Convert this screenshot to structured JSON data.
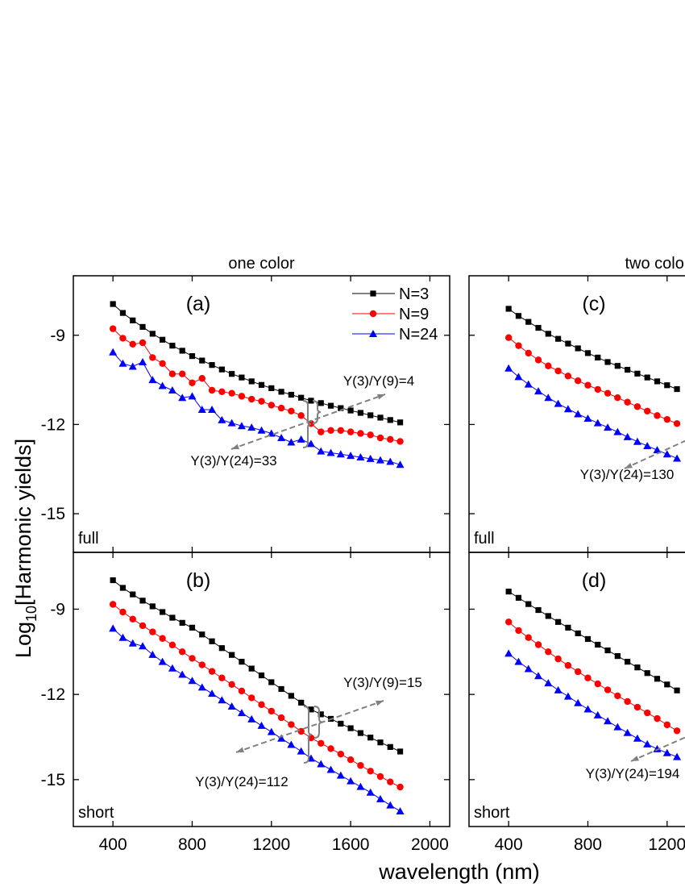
{
  "figure": {
    "ylabel": [
      "Log",
      "10",
      "[Harmonic yields]"
    ],
    "xlabel": "wavelength (nm)"
  },
  "chart_data": [
    {
      "type": "line",
      "title": "one color",
      "panel": "(a)",
      "condition": "full",
      "legend": "upper right",
      "xtick_labels": false,
      "ytick_labels": true,
      "x": [
        400,
        450,
        500,
        550,
        600,
        650,
        700,
        750,
        800,
        850,
        900,
        950,
        1000,
        1050,
        1100,
        1150,
        1200,
        1250,
        1300,
        1350,
        1400,
        1450,
        1500,
        1550,
        1600,
        1650,
        1700,
        1750,
        1800,
        1850
      ],
      "series": [
        {
          "name": "N=3",
          "color": "#000000",
          "marker": "square",
          "values": [
            -7.95,
            -8.25,
            -8.5,
            -8.72,
            -8.95,
            -9.15,
            -9.35,
            -9.52,
            -9.7,
            -9.85,
            -10.0,
            -10.15,
            -10.3,
            -10.42,
            -10.55,
            -10.67,
            -10.78,
            -10.9,
            -11.0,
            -11.1,
            -11.2,
            -11.28,
            -11.37,
            -11.45,
            -11.53,
            -11.61,
            -11.69,
            -11.77,
            -11.85,
            -11.93
          ]
        },
        {
          "name": "N=9",
          "color": "#ff0000",
          "marker": "circle",
          "values": [
            -8.78,
            -9.1,
            -9.3,
            -9.25,
            -9.75,
            -9.95,
            -10.3,
            -10.3,
            -10.6,
            -10.45,
            -10.85,
            -10.9,
            -10.95,
            -11.05,
            -11.15,
            -11.22,
            -11.35,
            -11.45,
            -11.55,
            -11.7,
            -11.97,
            -12.25,
            -12.2,
            -12.2,
            -12.25,
            -12.3,
            -12.35,
            -12.45,
            -12.5,
            -12.57
          ]
        },
        {
          "name": "N=24",
          "color": "#0000ff",
          "marker": "triangle",
          "values": [
            -9.57,
            -9.95,
            -10.05,
            -9.9,
            -10.5,
            -10.7,
            -10.85,
            -11.1,
            -11.05,
            -11.5,
            -11.5,
            -11.85,
            -11.95,
            -12.05,
            -12.1,
            -12.2,
            -12.3,
            -12.45,
            -12.6,
            -12.5,
            -12.65,
            -12.9,
            -12.95,
            -13.0,
            -13.05,
            -13.1,
            -13.15,
            -13.2,
            -13.25,
            -13.35
          ]
        }
      ],
      "xlim": [
        200,
        2100
      ],
      "ylim": [
        -16.3,
        -7
      ],
      "xticks": [
        400,
        800,
        1200,
        1600,
        2000
      ],
      "yticks": [
        -15,
        -12,
        -9
      ],
      "annotations": [
        "Y(3)/Y(9)=4",
        "Y(3)/Y(24)=33"
      ]
    },
    {
      "type": "line",
      "panel": "(b)",
      "condition": "short",
      "xtick_labels": true,
      "ytick_labels": true,
      "x": [
        400,
        450,
        500,
        550,
        600,
        650,
        700,
        750,
        800,
        850,
        900,
        950,
        1000,
        1050,
        1100,
        1150,
        1200,
        1250,
        1300,
        1350,
        1400,
        1450,
        1500,
        1550,
        1600,
        1650,
        1700,
        1750,
        1800,
        1850
      ],
      "series": [
        {
          "color": "#000000",
          "marker": "square",
          "values": [
            -7.98,
            -8.25,
            -8.48,
            -8.7,
            -8.9,
            -9.1,
            -9.3,
            -9.48,
            -9.65,
            -9.89,
            -10.13,
            -10.37,
            -10.61,
            -10.85,
            -11.09,
            -11.33,
            -11.57,
            -11.81,
            -12.05,
            -12.29,
            -12.53,
            -12.7,
            -12.86,
            -13.03,
            -13.19,
            -13.36,
            -13.52,
            -13.69,
            -13.85,
            -14.01
          ]
        },
        {
          "color": "#ff0000",
          "marker": "circle",
          "values": [
            -8.83,
            -9.1,
            -9.35,
            -9.58,
            -9.8,
            -10.03,
            -10.26,
            -10.5,
            -10.73,
            -10.96,
            -11.19,
            -11.42,
            -11.65,
            -11.88,
            -12.12,
            -12.36,
            -12.59,
            -12.82,
            -13.06,
            -13.3,
            -13.53,
            -13.72,
            -13.91,
            -14.1,
            -14.3,
            -14.5,
            -14.7,
            -14.89,
            -15.08,
            -15.26
          ]
        },
        {
          "color": "#0000ff",
          "marker": "triangle",
          "values": [
            -9.68,
            -10.0,
            -10.2,
            -10.3,
            -10.6,
            -10.85,
            -11.08,
            -11.3,
            -11.52,
            -11.75,
            -11.97,
            -12.2,
            -12.42,
            -12.65,
            -12.87,
            -13.1,
            -13.32,
            -13.55,
            -13.77,
            -14.0,
            -14.25,
            -14.45,
            -14.65,
            -14.85,
            -15.05,
            -15.25,
            -15.45,
            -15.68,
            -15.9,
            -16.11
          ]
        }
      ],
      "xlim": [
        200,
        2100
      ],
      "ylim": [
        -16.65,
        -7
      ],
      "xticks": [
        400,
        800,
        1200,
        1600,
        2000
      ],
      "yticks": [
        -15,
        -12,
        -9
      ],
      "annotations": [
        "Y(3)/Y(9)=15",
        "Y(3)/Y(24)=112"
      ]
    },
    {
      "type": "line",
      "title": "two color",
      "panel": "(c)",
      "condition": "full",
      "xtick_labels": false,
      "ytick_labels": false,
      "x": [
        400,
        450,
        500,
        550,
        600,
        650,
        700,
        750,
        800,
        850,
        900,
        950,
        1000,
        1050,
        1100,
        1150,
        1200,
        1250
      ],
      "series": [
        {
          "color": "#000000",
          "marker": "square",
          "values": [
            -8.11,
            -8.35,
            -8.55,
            -8.75,
            -8.95,
            -9.12,
            -9.28,
            -9.44,
            -9.6,
            -9.75,
            -9.9,
            -10.03,
            -10.16,
            -10.29,
            -10.42,
            -10.55,
            -10.68,
            -10.81
          ]
        },
        {
          "color": "#ff0000",
          "marker": "circle",
          "values": [
            -9.08,
            -9.35,
            -9.6,
            -9.83,
            -10.03,
            -10.2,
            -10.37,
            -10.53,
            -10.68,
            -10.82,
            -10.95,
            -11.1,
            -11.25,
            -11.4,
            -11.55,
            -11.7,
            -11.83,
            -11.97
          ]
        },
        {
          "color": "#0000ff",
          "marker": "triangle",
          "values": [
            -10.11,
            -10.4,
            -10.65,
            -10.88,
            -11.1,
            -11.3,
            -11.48,
            -11.65,
            -11.8,
            -11.95,
            -12.1,
            -12.25,
            -12.42,
            -12.58,
            -12.72,
            -12.86,
            -13.0,
            -13.14
          ]
        }
      ],
      "xlim": [
        200,
        2100
      ],
      "ylim": [
        -16.3,
        -7
      ],
      "xticks": [
        400,
        800,
        1200,
        1600,
        2000
      ],
      "yticks": [
        -15,
        -12,
        -9
      ],
      "annotations": [
        "Y(3)/Y(24)=130"
      ]
    },
    {
      "type": "line",
      "panel": "(d)",
      "condition": "short",
      "xtick_labels": true,
      "ytick_labels": false,
      "x": [
        400,
        450,
        500,
        550,
        600,
        650,
        700,
        750,
        800,
        850,
        900,
        950,
        1000,
        1050,
        1100,
        1150,
        1200,
        1250
      ],
      "series": [
        {
          "color": "#000000",
          "marker": "square",
          "values": [
            -8.38,
            -8.6,
            -8.82,
            -9.03,
            -9.24,
            -9.45,
            -9.65,
            -9.85,
            -10.05,
            -10.25,
            -10.45,
            -10.65,
            -10.85,
            -11.05,
            -11.25,
            -11.45,
            -11.65,
            -11.86
          ]
        },
        {
          "color": "#ff0000",
          "marker": "circle",
          "values": [
            -9.45,
            -9.75,
            -10.0,
            -10.25,
            -10.5,
            -10.75,
            -10.98,
            -11.2,
            -11.42,
            -11.63,
            -11.84,
            -12.05,
            -12.25,
            -12.45,
            -12.65,
            -12.85,
            -13.07,
            -13.28
          ]
        },
        {
          "color": "#0000ff",
          "marker": "triangle",
          "values": [
            -10.56,
            -10.85,
            -11.1,
            -11.35,
            -11.6,
            -11.85,
            -12.07,
            -12.3,
            -12.52,
            -12.73,
            -12.94,
            -13.15,
            -13.35,
            -13.55,
            -13.75,
            -13.92,
            -14.06,
            -14.2
          ]
        }
      ],
      "xlim": [
        200,
        2100
      ],
      "ylim": [
        -16.65,
        -7
      ],
      "xticks": [
        400,
        800,
        1200,
        1600,
        2000
      ],
      "yticks": [
        -15,
        -12,
        -9
      ],
      "annotations": [
        "Y(3)/Y(24)=194"
      ]
    }
  ]
}
